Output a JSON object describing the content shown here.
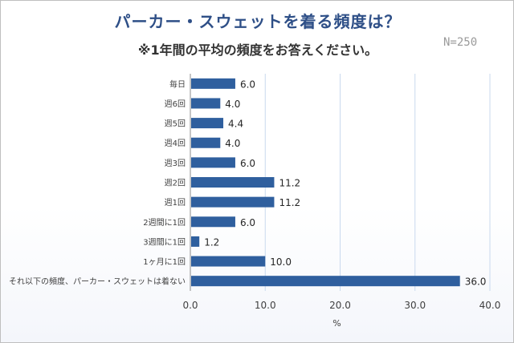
{
  "header": {
    "title": "パーカー・スウェットを着る頻度は？",
    "subtitle": "※1年間の平均の頻度をお答えください。",
    "n_label": "N=250"
  },
  "chart_data": {
    "type": "bar",
    "orientation": "horizontal",
    "categories": [
      "毎日",
      "週6回",
      "週5回",
      "週4回",
      "週3回",
      "週2回",
      "週1回",
      "2週間に1回",
      "3週間に1回",
      "1ヶ月に1回",
      "それ以下の頻度、パーカー・スウェットは着ない"
    ],
    "values": [
      6.0,
      4.0,
      4.4,
      4.0,
      6.0,
      11.2,
      11.2,
      6.0,
      1.2,
      10.0,
      36.0
    ],
    "value_labels": [
      "6.0",
      "4.0",
      "4.4",
      "4.0",
      "6.0",
      "11.2",
      "11.2",
      "6.0",
      "1.2",
      "10.0",
      "36.0"
    ],
    "xlabel": "%",
    "xlim": [
      0,
      40
    ],
    "xticks": [
      "0.0",
      "10.0",
      "20.0",
      "30.0",
      "40.0"
    ],
    "grid": true,
    "bar_color": "#2f5f9e"
  }
}
